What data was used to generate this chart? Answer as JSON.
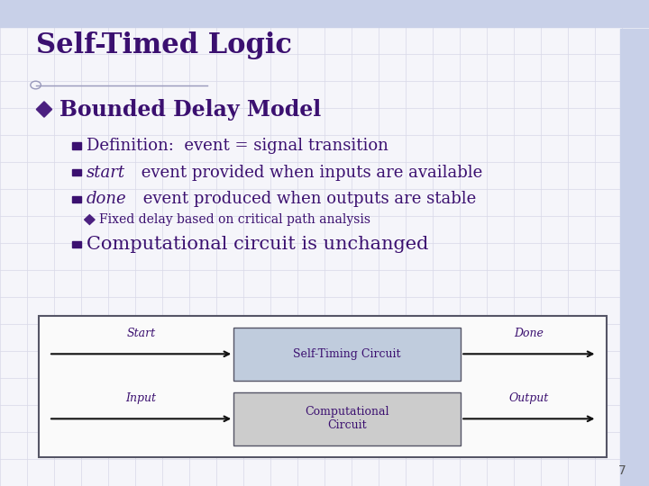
{
  "title": "Self-Timed Logic",
  "title_color": "#3B1070",
  "title_fontsize": 22,
  "bg_color": "#F5F5FA",
  "grid_color": "#D8D8E8",
  "bullet_header": "Bounded Delay Model",
  "bullet_header_color": "#3B1070",
  "bullet_header_fontsize": 17,
  "bullet_diamond_color": "#4B2080",
  "bullets": [
    {
      "text_parts": [
        {
          "text": "Definition:  event = signal transition",
          "italic": false
        }
      ]
    },
    {
      "text_parts": [
        {
          "text": "start",
          "italic": true
        },
        {
          "text": " event provided when inputs are available",
          "italic": false
        }
      ]
    },
    {
      "text_parts": [
        {
          "text": "done",
          "italic": true
        },
        {
          "text": " event produced when outputs are stable",
          "italic": false
        }
      ]
    }
  ],
  "sub_bullet": "Fixed delay based on critical path analysis",
  "sub_bullet_color": "#3B1070",
  "sub_bullet_fontsize": 10,
  "last_bullet": "Computational circuit is unchanged",
  "bullet_color": "#3B1070",
  "bullet_fontsize": 13,
  "last_bullet_fontsize": 15,
  "bullet_marker_color": "#3B1070",
  "diagram": {
    "outer_facecolor": "#FAFAFA",
    "outer_edgecolor": "#555566",
    "self_timing_facecolor": "#C0CCDD",
    "self_timing_edgecolor": "#555566",
    "comp_circuit_facecolor": "#CCCCCC",
    "comp_circuit_edgecolor": "#555566",
    "self_timing_label": "Self-Timing Circuit",
    "comp_circuit_label": "Computational\nCircuit",
    "start_label": "Start",
    "done_label": "Done",
    "input_label": "Input",
    "output_label": "Output",
    "label_color": "#3B1070",
    "label_fontsize": 9,
    "arrow_color": "#111111"
  },
  "deco_line_color": "#9999BB",
  "deco_circle_color": "#9999BB",
  "top_bar_color": "#C8D0E8",
  "right_bar_color": "#C8D0E8",
  "page_number": "7",
  "page_num_color": "#555555",
  "page_num_fontsize": 10
}
